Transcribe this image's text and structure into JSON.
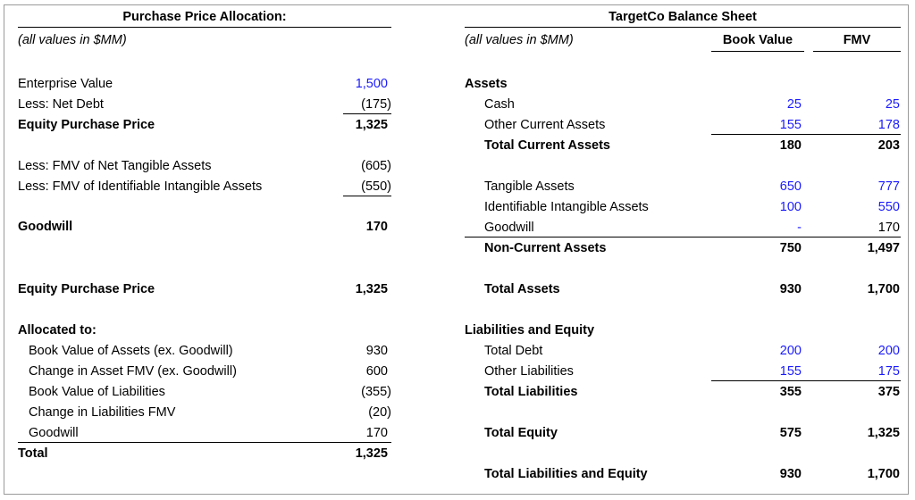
{
  "ppa": {
    "title": "Purchase Price Allocation:",
    "units": "(all values in $MM)",
    "ev": {
      "label": "Enterprise Value",
      "value": "1,500"
    },
    "net_debt": {
      "label": "Less: Net Debt",
      "value": "(175)"
    },
    "equity_price": {
      "label": "Equity Purchase Price",
      "value": "1,325"
    },
    "fmv_tangible": {
      "label": "Less: FMV of Net Tangible Assets",
      "value": "(605)"
    },
    "fmv_intangible": {
      "label": "Less: FMV of Identifiable Intangible Assets",
      "value": "(550)"
    },
    "goodwill": {
      "label": "Goodwill",
      "value": "170"
    },
    "equity_price2": {
      "label": "Equity Purchase Price",
      "value": "1,325"
    },
    "allocated_header": "Allocated to:",
    "allocated": [
      {
        "label": "Book Value of Assets (ex. Goodwill)",
        "value": "930"
      },
      {
        "label": "Change in Asset FMV (ex. Goodwill)",
        "value": "600"
      },
      {
        "label": "Book Value of Liabilities",
        "value": "(355)"
      },
      {
        "label": "Change in Liabilities FMV",
        "value": "(20)"
      },
      {
        "label": "Goodwill",
        "value": "170"
      }
    ],
    "total": {
      "label": "Total",
      "value": "1,325"
    }
  },
  "bs": {
    "title": "TargetCo Balance Sheet",
    "units": "(all values in $MM)",
    "col_book": "Book Value",
    "col_fmv": "FMV",
    "assets_header": "Assets",
    "cash": {
      "label": "Cash",
      "book": "25",
      "fmv": "25"
    },
    "oca": {
      "label": "Other Current Assets",
      "book": "155",
      "fmv": "178"
    },
    "tca": {
      "label": "Total Current Assets",
      "book": "180",
      "fmv": "203"
    },
    "tangible": {
      "label": "Tangible Assets",
      "book": "650",
      "fmv": "777"
    },
    "intangible": {
      "label": "Identifiable Intangible Assets",
      "book": "100",
      "fmv": "550"
    },
    "goodwill": {
      "label": "Goodwill",
      "book": "-",
      "fmv": "170"
    },
    "nca": {
      "label": "Non-Current Assets",
      "book": "750",
      "fmv": "1,497"
    },
    "ta": {
      "label": "Total Assets",
      "book": "930",
      "fmv": "1,700"
    },
    "le_header": "Liabilities and Equity",
    "debt": {
      "label": "Total Debt",
      "book": "200",
      "fmv": "200"
    },
    "ol": {
      "label": "Other Liabilities",
      "book": "155",
      "fmv": "175"
    },
    "tl": {
      "label": "Total Liabilities",
      "book": "355",
      "fmv": "375"
    },
    "te": {
      "label": "Total Equity",
      "book": "575",
      "fmv": "1,325"
    },
    "tle": {
      "label": "Total Liabilities and Equity",
      "book": "930",
      "fmv": "1,700"
    }
  },
  "colors": {
    "input_blue": "#1a1aff",
    "frame": "#9a9a9a"
  }
}
